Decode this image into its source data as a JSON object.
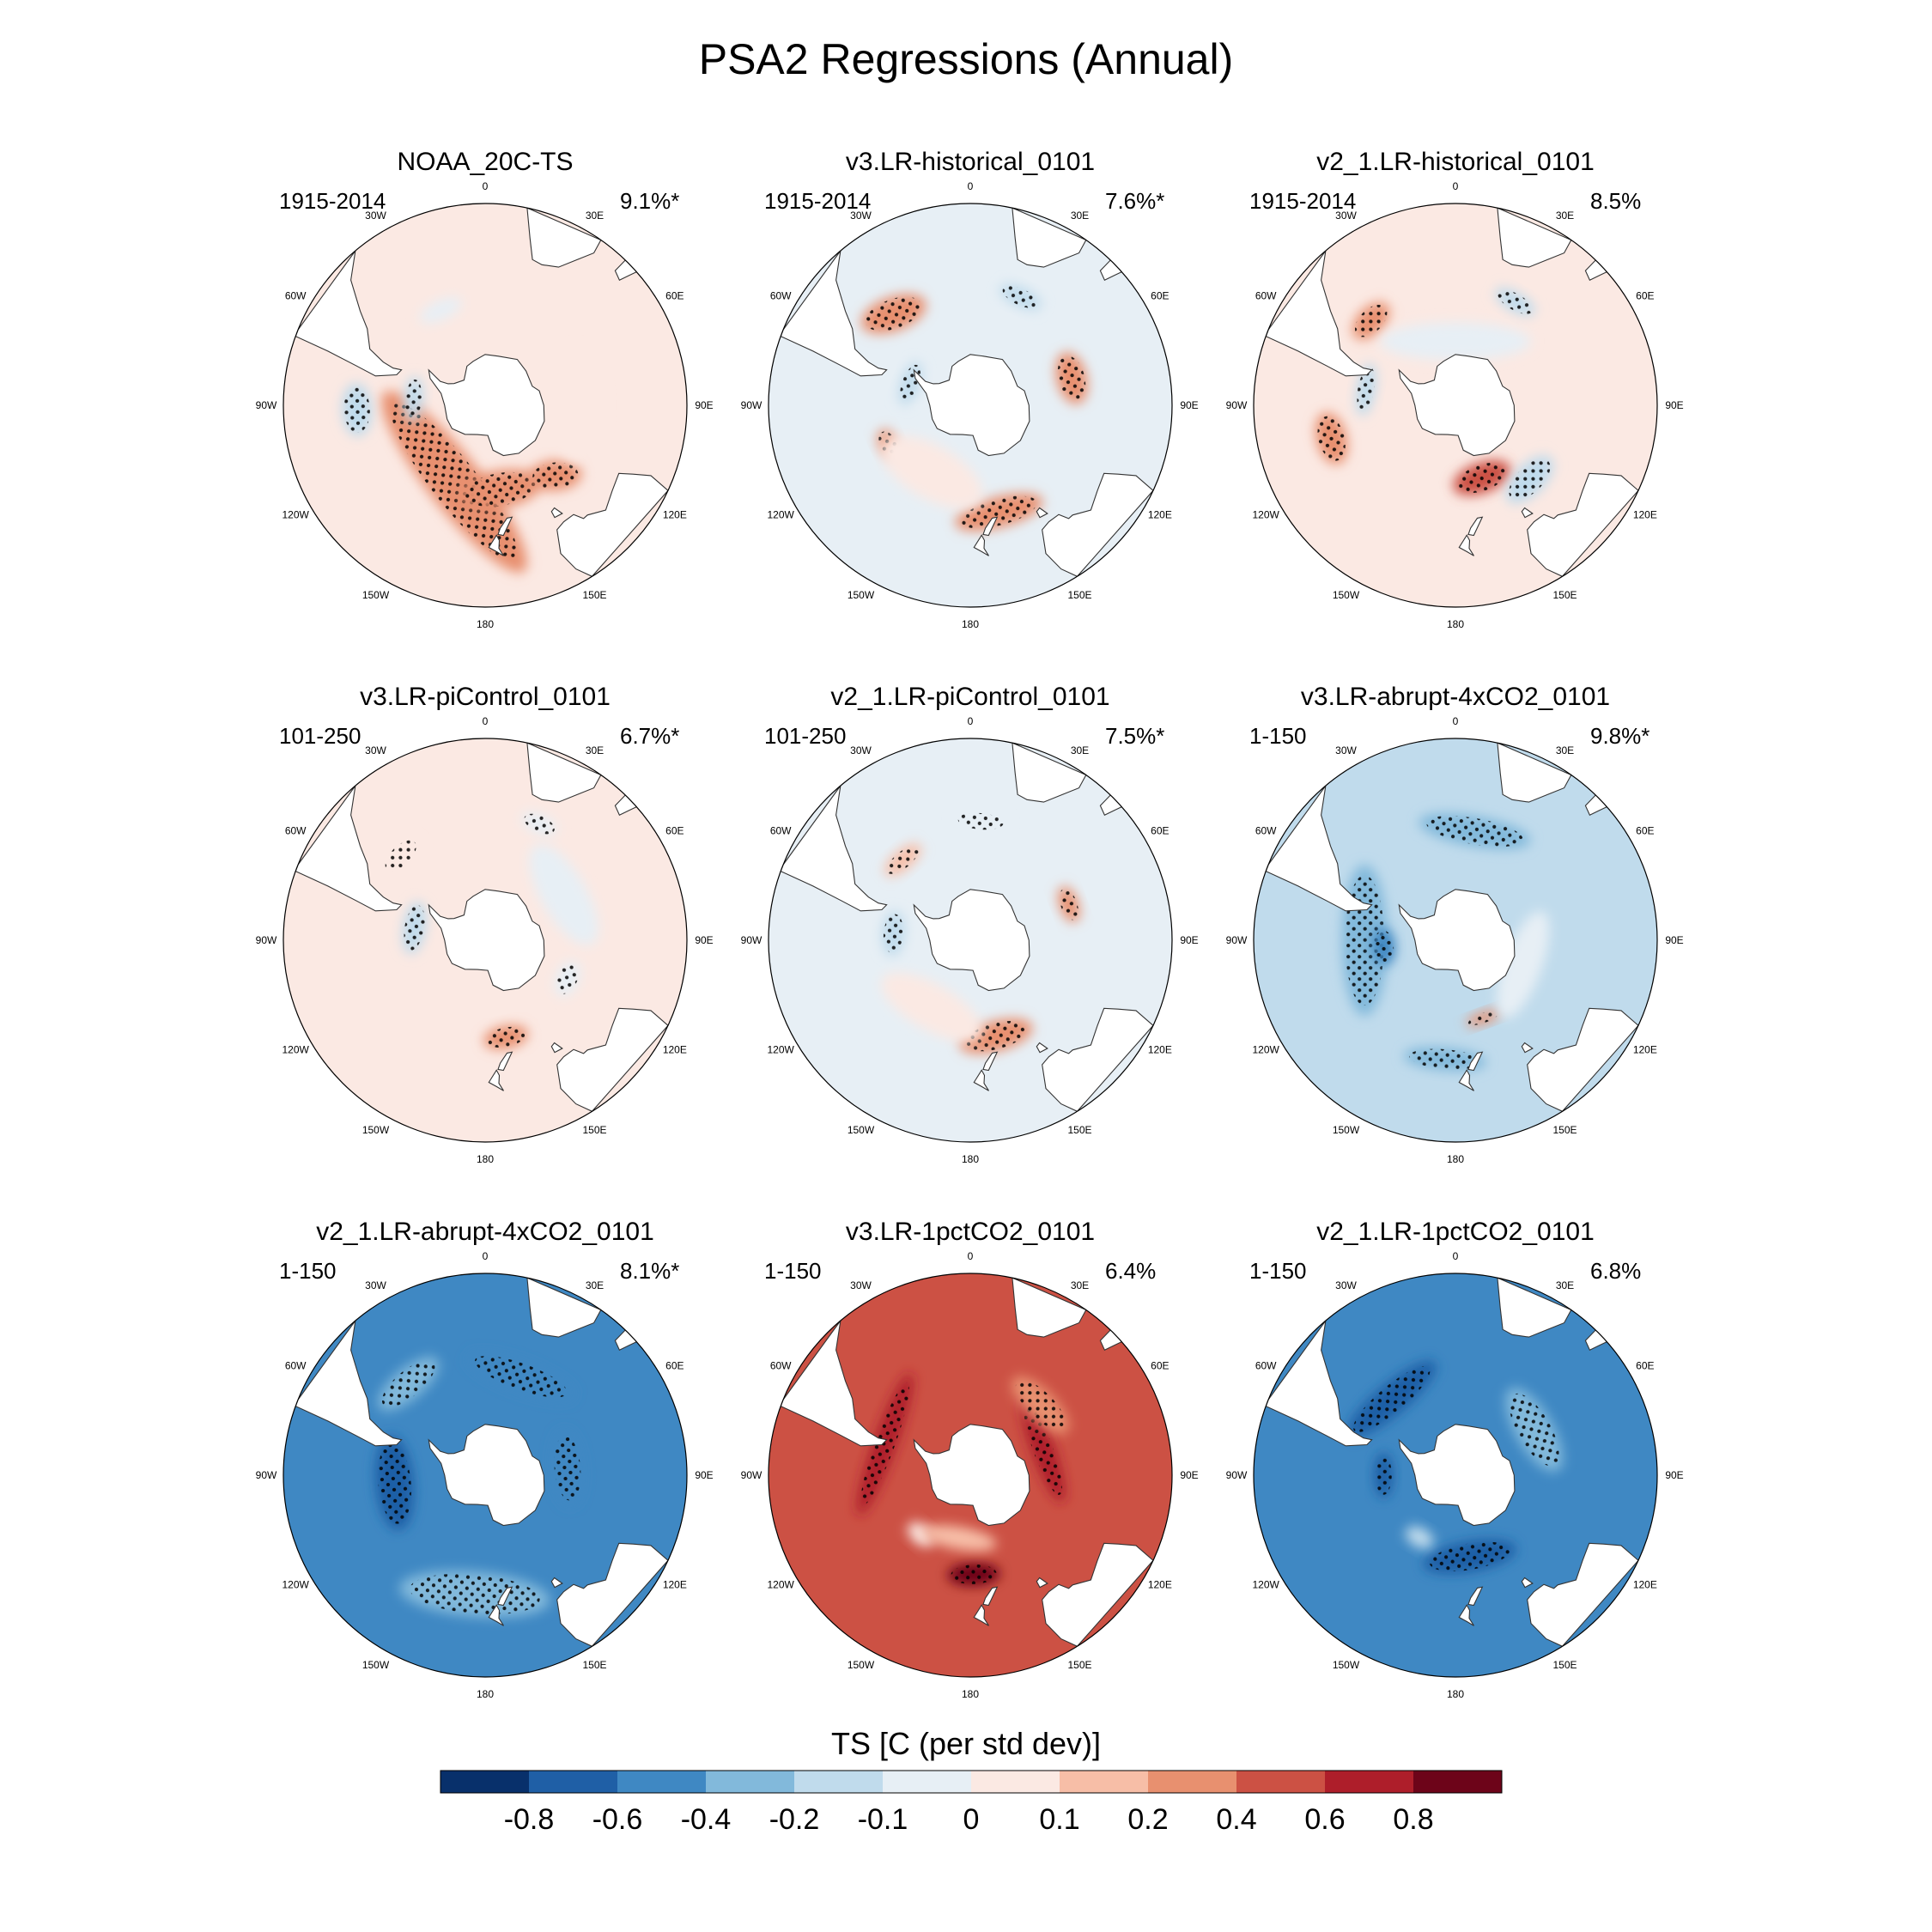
{
  "chart_data": {
    "type": "heatmap",
    "title": "PSA2 Regressions (Annual)",
    "projection": "south polar stereographic",
    "longitude_labels": [
      "0",
      "30E",
      "60E",
      "90E",
      "120E",
      "150E",
      "180",
      "150W",
      "120W",
      "90W",
      "60W",
      "30W"
    ],
    "colorbar": {
      "title": "TS [C (per std dev)]",
      "tick_labels": [
        "-0.8",
        "-0.6",
        "-0.4",
        "-0.2",
        "-0.1",
        "0",
        "0.1",
        "0.2",
        "0.4",
        "0.6",
        "0.8"
      ],
      "colors": [
        "#08306b",
        "#1f5fa6",
        "#3f88c3",
        "#82b9db",
        "#c0dbec",
        "#e7eff5",
        "#fbe9e3",
        "#f7bea7",
        "#e8906f",
        "#cc5144",
        "#ae1e2a",
        "#6d0419"
      ]
    },
    "panels": [
      {
        "title": "NOAA_20C-TS",
        "period": "1915-2014",
        "variance": "9.1%*",
        "base_value": 0.03,
        "features": [
          {
            "value": 0.35,
            "lat": -58,
            "lon": -158,
            "sizes": [
              14,
              60
            ],
            "angle": 30,
            "stipple": true
          },
          {
            "value": 0.3,
            "lat": -57,
            "lon": 170,
            "sizes": [
              10,
              22
            ],
            "angle": 0,
            "stipple": true
          },
          {
            "value": 0.3,
            "lat": -52,
            "lon": 135,
            "sizes": [
              8,
              14
            ],
            "angle": 40,
            "stipple": true
          },
          {
            "value": -0.12,
            "lat": -42,
            "lon": -92,
            "sizes": [
              8,
              14
            ],
            "angle": 0,
            "stipple": true
          },
          {
            "value": -0.12,
            "lat": -62,
            "lon": -85,
            "sizes": [
              5,
              12
            ],
            "angle": 0,
            "stipple": true
          },
          {
            "value": -0.1,
            "lat": -50,
            "lon": -25,
            "sizes": [
              5,
              12
            ],
            "angle": 0,
            "stipple": false
          },
          {
            "value": 0.05,
            "lat": -55,
            "lon": 90,
            "sizes": [
              14,
              30
            ],
            "angle": 0,
            "stipple": false
          }
        ]
      },
      {
        "title": "v3.LR-historical_0101",
        "period": "1915-2014",
        "variance": "7.6%*",
        "base_value": -0.05,
        "features": [
          {
            "value": 0.25,
            "lat": -45,
            "lon": -40,
            "sizes": [
              9,
              18
            ],
            "angle": 20,
            "stipple": true
          },
          {
            "value": 0.3,
            "lat": -50,
            "lon": 75,
            "sizes": [
              8,
              14
            ],
            "angle": 0,
            "stipple": true
          },
          {
            "value": 0.25,
            "lat": -48,
            "lon": 165,
            "sizes": [
              8,
              24
            ],
            "angle": 0,
            "stipple": true
          },
          {
            "value": 0.2,
            "lat": -55,
            "lon": -115,
            "sizes": [
              5,
              8
            ],
            "angle": 0,
            "stipple": true
          },
          {
            "value": -0.15,
            "lat": -45,
            "lon": 25,
            "sizes": [
              5,
              12
            ],
            "angle": 0,
            "stipple": true
          },
          {
            "value": -0.15,
            "lat": -65,
            "lon": -70,
            "sizes": [
              5,
              12
            ],
            "angle": 0,
            "stipple": true
          },
          {
            "value": 0.05,
            "lat": -60,
            "lon": -150,
            "sizes": [
              14,
              30
            ],
            "angle": 0,
            "stipple": false
          }
        ]
      },
      {
        "title": "v2_1.LR-historical_0101",
        "period": "1915-2014",
        "variance": "8.5%",
        "base_value": 0.04,
        "features": [
          {
            "value": 0.45,
            "lat": -60,
            "lon": 160,
            "sizes": [
              8,
              16
            ],
            "angle": 0,
            "stipple": true
          },
          {
            "value": 0.25,
            "lat": -45,
            "lon": -45,
            "sizes": [
              7,
              12
            ],
            "angle": 0,
            "stipple": true
          },
          {
            "value": 0.2,
            "lat": -42,
            "lon": -105,
            "sizes": [
              8,
              14
            ],
            "angle": 0,
            "stipple": true
          },
          {
            "value": -0.15,
            "lat": -45,
            "lon": 30,
            "sizes": [
              5,
              12
            ],
            "angle": 0,
            "stipple": true
          },
          {
            "value": -0.15,
            "lat": -55,
            "lon": -80,
            "sizes": [
              5,
              14
            ],
            "angle": 0,
            "stipple": true
          },
          {
            "value": -0.12,
            "lat": -50,
            "lon": 135,
            "sizes": [
              8,
              16
            ],
            "angle": 0,
            "stipple": true
          },
          {
            "value": -0.08,
            "lat": -65,
            "lon": 0,
            "sizes": [
              10,
              40
            ],
            "angle": 0,
            "stipple": false
          }
        ]
      },
      {
        "title": "v3.LR-piControl_0101",
        "period": "101-250",
        "variance": "6.7%*",
        "base_value": 0.05,
        "features": [
          {
            "value": 0.25,
            "lat": -52,
            "lon": 168,
            "sizes": [
              6,
              12
            ],
            "angle": 0,
            "stipple": true
          },
          {
            "value": -0.15,
            "lat": -62,
            "lon": -80,
            "sizes": [
              6,
              14
            ],
            "angle": 0,
            "stipple": true
          },
          {
            "value": -0.1,
            "lat": -55,
            "lon": 115,
            "sizes": [
              6,
              10
            ],
            "angle": 0,
            "stipple": true
          },
          {
            "value": -0.08,
            "lat": -42,
            "lon": 25,
            "sizes": [
              5,
              10
            ],
            "angle": 0,
            "stipple": true
          },
          {
            "value": 0.05,
            "lat": -45,
            "lon": -45,
            "sizes": [
              6,
              12
            ],
            "angle": 0,
            "stipple": true
          },
          {
            "value": -0.05,
            "lat": -55,
            "lon": 60,
            "sizes": [
              12,
              30
            ],
            "angle": 0,
            "stipple": false
          }
        ]
      },
      {
        "title": "v2_1.LR-piControl_0101",
        "period": "101-250",
        "variance": "7.5%*",
        "base_value": -0.04,
        "features": [
          {
            "value": 0.2,
            "lat": -52,
            "lon": 165,
            "sizes": [
              8,
              20
            ],
            "angle": 0,
            "stipple": true
          },
          {
            "value": 0.2,
            "lat": -50,
            "lon": 70,
            "sizes": [
              5,
              10
            ],
            "angle": 0,
            "stipple": true
          },
          {
            "value": 0.15,
            "lat": -50,
            "lon": -40,
            "sizes": [
              5,
              12
            ],
            "angle": 0,
            "stipple": true
          },
          {
            "value": -0.15,
            "lat": -60,
            "lon": -85,
            "sizes": [
              6,
              12
            ],
            "angle": 0,
            "stipple": true
          },
          {
            "value": -0.1,
            "lat": -45,
            "lon": 5,
            "sizes": [
              5,
              14
            ],
            "angle": 0,
            "stipple": true
          },
          {
            "value": 0.05,
            "lat": -60,
            "lon": -150,
            "sizes": [
              12,
              30
            ],
            "angle": 0,
            "stipple": false
          }
        ]
      },
      {
        "title": "v3.LR-abrupt-4xCO2_0101",
        "period": "1-150",
        "variance": "9.8%*",
        "base_value": -0.2,
        "features": [
          {
            "value": -0.4,
            "lat": -55,
            "lon": -90,
            "sizes": [
              12,
              40
            ],
            "angle": 0,
            "stipple": true
          },
          {
            "value": -0.45,
            "lat": -62,
            "lon": -95,
            "sizes": [
              6,
              10
            ],
            "angle": 0,
            "stipple": true
          },
          {
            "value": -0.35,
            "lat": -48,
            "lon": 10,
            "sizes": [
              8,
              30
            ],
            "angle": 0,
            "stipple": true
          },
          {
            "value": 0.3,
            "lat": -58,
            "lon": 160,
            "sizes": [
              3,
              10
            ],
            "angle": 0,
            "stipple": true
          },
          {
            "value": -0.1,
            "lat": -62,
            "lon": 110,
            "sizes": [
              10,
              30
            ],
            "angle": 0,
            "stipple": false
          },
          {
            "value": -0.3,
            "lat": -45,
            "lon": -175,
            "sizes": [
              6,
              22
            ],
            "angle": 0,
            "stipple": true
          }
        ]
      },
      {
        "title": "v2_1.LR-abrupt-4xCO2_0101",
        "period": "1-150",
        "variance": "8.1%*",
        "base_value": -0.45,
        "features": [
          {
            "value": -0.75,
            "lat": -55,
            "lon": -95,
            "sizes": [
              10,
              25
            ],
            "angle": 0,
            "stipple": true
          },
          {
            "value": -0.6,
            "lat": -58,
            "lon": 85,
            "sizes": [
              8,
              20
            ],
            "angle": 0,
            "stipple": true
          },
          {
            "value": -0.6,
            "lat": -50,
            "lon": 20,
            "sizes": [
              8,
              30
            ],
            "angle": 0,
            "stipple": true
          },
          {
            "value": -0.3,
            "lat": -45,
            "lon": -175,
            "sizes": [
              12,
              40
            ],
            "angle": 0,
            "stipple": true
          },
          {
            "value": -0.25,
            "lat": -45,
            "lon": -40,
            "sizes": [
              8,
              20
            ],
            "angle": 0,
            "stipple": true
          }
        ]
      },
      {
        "title": "v3.LR-1pctCO2_0101",
        "period": "1-150",
        "variance": "6.4%",
        "base_value": 0.5,
        "features": [
          {
            "value": 0.85,
            "lat": -52,
            "lon": 178,
            "sizes": [
              6,
              14
            ],
            "angle": 0,
            "stipple": true
          },
          {
            "value": 0.75,
            "lat": -60,
            "lon": 70,
            "sizes": [
              6,
              30
            ],
            "angle": 0,
            "stipple": true
          },
          {
            "value": 0.7,
            "lat": -55,
            "lon": -70,
            "sizes": [
              6,
              40
            ],
            "angle": 0,
            "stipple": true
          },
          {
            "value": 0.3,
            "lat": -52,
            "lon": 45,
            "sizes": [
              8,
              20
            ],
            "angle": 0,
            "stipple": true
          },
          {
            "value": 0.05,
            "lat": -60,
            "lon": -140,
            "sizes": [
              5,
              8
            ],
            "angle": 0,
            "stipple": false
          },
          {
            "value": 0.15,
            "lat": -65,
            "lon": -170,
            "sizes": [
              6,
              20
            ],
            "angle": 0,
            "stipple": false
          }
        ]
      },
      {
        "title": "v2_1.LR-1pctCO2_0101",
        "period": "1-150",
        "variance": "6.8%",
        "base_value": -0.45,
        "features": [
          {
            "value": -0.7,
            "lat": -52,
            "lon": -40,
            "sizes": [
              8,
              30
            ],
            "angle": 0,
            "stipple": true
          },
          {
            "value": -0.65,
            "lat": -58,
            "lon": 170,
            "sizes": [
              8,
              25
            ],
            "angle": 0,
            "stipple": true
          },
          {
            "value": -0.7,
            "lat": -62,
            "lon": -90,
            "sizes": [
              5,
              12
            ],
            "angle": 0,
            "stipple": true
          },
          {
            "value": -0.2,
            "lat": -62,
            "lon": -150,
            "sizes": [
              5,
              8
            ],
            "angle": 0,
            "stipple": false
          },
          {
            "value": -0.3,
            "lat": -55,
            "lon": 60,
            "sizes": [
              10,
              25
            ],
            "angle": 0,
            "stipple": true
          }
        ]
      }
    ]
  }
}
